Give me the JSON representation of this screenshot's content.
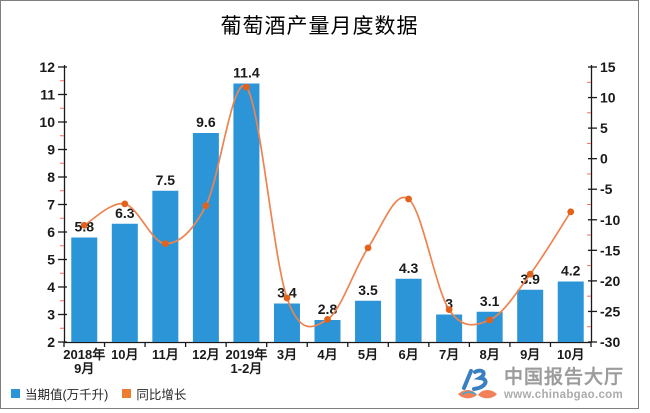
{
  "title": "葡萄酒产量月度数据",
  "legend": {
    "items": [
      {
        "label": "当期值(万千升)",
        "color": "#2C95D7"
      },
      {
        "label": "同比增长",
        "color": "#ED7D31"
      }
    ]
  },
  "watermark": {
    "name": "中国报告大厅",
    "url": "www.chinabgao.com"
  },
  "colors": {
    "bar": "#2C95D7",
    "line": "#EF8350",
    "marker": "#E2621B",
    "axis": "#1a1a1a",
    "minor_tick": "#EE6B6B",
    "label": "#1a1a1a",
    "frame_border": "#7f7f7f",
    "logo_blue": "#3A7FC1",
    "logo_orange": "#F2805A",
    "logo_teal": "#3FA8CC",
    "logo_text": "#9C9C9C",
    "logo_url_text": "#ABABAB"
  },
  "chart_data": {
    "type": "bar",
    "combo": "bar+line dual axis",
    "title": "葡萄酒产量月度数据",
    "categories": [
      [
        "2018年",
        "9月"
      ],
      [
        "10月"
      ],
      [
        "11月"
      ],
      [
        "12月"
      ],
      [
        "2019年",
        "1-2月"
      ],
      [
        "3月"
      ],
      [
        "4月"
      ],
      [
        "5月"
      ],
      [
        "6月"
      ],
      [
        "7月"
      ],
      [
        "8月"
      ],
      [
        "9月"
      ],
      [
        "10月"
      ]
    ],
    "series": [
      {
        "name": "当期值(万千升)",
        "type": "bar",
        "axis": "left",
        "values": [
          5.8,
          6.3,
          7.5,
          9.6,
          11.4,
          3.4,
          2.8,
          3.5,
          4.3,
          3,
          3.1,
          3.9,
          4.2
        ],
        "labels": [
          "5.8",
          "6.3",
          "7.5",
          "9.6",
          "11.4",
          "3.4",
          "2.8",
          "3.5",
          "4.3",
          "3",
          "3.1",
          "3.9",
          "4.2"
        ],
        "data_labels_visible": true
      },
      {
        "name": "同比增长",
        "type": "line",
        "axis": "right",
        "smooth": true,
        "markers": true,
        "data_labels_visible": false,
        "values_estimated_from_plot": true,
        "values": [
          -10.9,
          -7.4,
          -13.9,
          -7.7,
          11.7,
          -22.8,
          -26.3,
          -14.6,
          -6.6,
          -24.7,
          -26.4,
          -18.9,
          -8.7
        ]
      }
    ],
    "axes": {
      "left": {
        "min": 2,
        "max": 12,
        "step": 1,
        "minor_step": 0.5,
        "ticks": [
          2,
          3,
          4,
          5,
          6,
          7,
          8,
          9,
          10,
          11,
          12
        ],
        "tick_labels": [
          "2",
          "3",
          "4",
          "5",
          "6",
          "7",
          "8",
          "9",
          "10",
          "11",
          "12"
        ]
      },
      "right": {
        "min": -30,
        "max": 15,
        "step": 5,
        "minor_step": 2.5,
        "ticks": [
          -30,
          -25,
          -20,
          -15,
          -10,
          -5,
          0,
          5,
          10,
          15
        ],
        "tick_labels": [
          "-30",
          "-25",
          "-20",
          "-15",
          "-10",
          "-5",
          "0",
          "5",
          "10",
          "15"
        ]
      }
    },
    "grid": false,
    "legend_position": "bottom-left"
  }
}
